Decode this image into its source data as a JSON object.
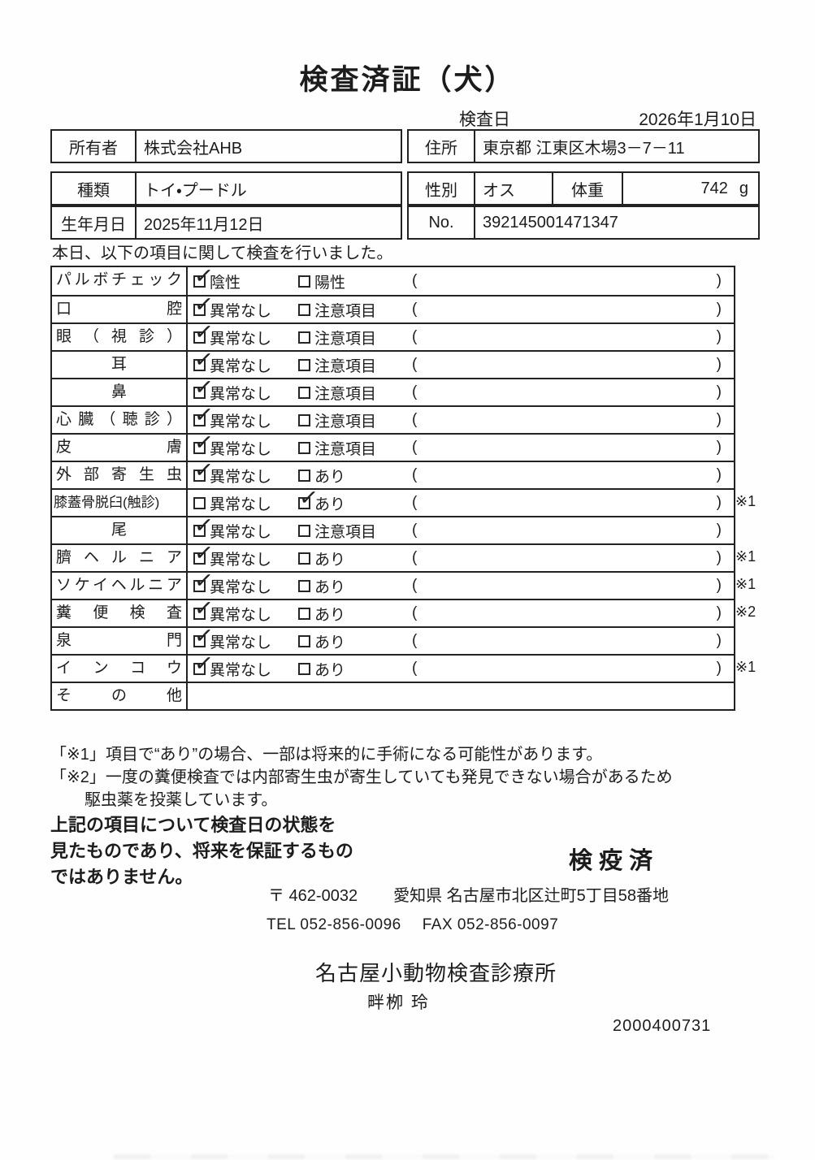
{
  "title": "検査済証（犬）",
  "exam_date": {
    "label": "検査日",
    "value": "2026年1月10日"
  },
  "owner": {
    "label": "所有者",
    "value": "株式会社AHB",
    "address_label": "住所",
    "address": "東京都 江東区木場3－7－11"
  },
  "pet": {
    "breed_label": "種類",
    "breed": "トイ・プードル",
    "sex_label": "性別",
    "sex": "オス",
    "weight_label": "体重",
    "weight": "742",
    "weight_unit": "g",
    "birthdate_label": "生年月日",
    "birthdate": "2025年11月12日",
    "no_label": "No.",
    "no": "392145001471347"
  },
  "intro": "本日、以下の項目に関して検査を行いました。",
  "paren_open": "(",
  "paren_close": ")",
  "exam_items": [
    {
      "label": "パルボチェック",
      "align": "justify",
      "options": [
        {
          "text": "陰性",
          "checked": true
        },
        {
          "text": "陽性",
          "checked": false
        }
      ],
      "paren_value": "",
      "note": ""
    },
    {
      "label": "口腔",
      "align": "justify",
      "options": [
        {
          "text": "異常なし",
          "checked": true
        },
        {
          "text": "注意項目",
          "checked": false
        }
      ],
      "paren_value": "",
      "note": ""
    },
    {
      "label": "眼（視診）",
      "align": "justify",
      "options": [
        {
          "text": "異常なし",
          "checked": true
        },
        {
          "text": "注意項目",
          "checked": false
        }
      ],
      "paren_value": "",
      "note": ""
    },
    {
      "label": "耳",
      "align": "center",
      "options": [
        {
          "text": "異常なし",
          "checked": true
        },
        {
          "text": "注意項目",
          "checked": false
        }
      ],
      "paren_value": "",
      "note": ""
    },
    {
      "label": "鼻",
      "align": "center",
      "options": [
        {
          "text": "異常なし",
          "checked": true
        },
        {
          "text": "注意項目",
          "checked": false
        }
      ],
      "paren_value": "",
      "note": ""
    },
    {
      "label": "心臓（聴診）",
      "align": "justify",
      "options": [
        {
          "text": "異常なし",
          "checked": true
        },
        {
          "text": "注意項目",
          "checked": false
        }
      ],
      "paren_value": "",
      "note": ""
    },
    {
      "label": "皮膚",
      "align": "justify",
      "options": [
        {
          "text": "異常なし",
          "checked": true
        },
        {
          "text": "注意項目",
          "checked": false
        }
      ],
      "paren_value": "",
      "note": ""
    },
    {
      "label": "外部寄生虫",
      "align": "justify",
      "options": [
        {
          "text": "異常なし",
          "checked": true
        },
        {
          "text": "あり",
          "checked": false
        }
      ],
      "paren_value": "",
      "note": ""
    },
    {
      "label": "膝蓋骨脱臼(触診)",
      "align": "tight",
      "options": [
        {
          "text": "異常なし",
          "checked": false
        },
        {
          "text": "あり",
          "checked": true
        }
      ],
      "paren_value": "",
      "note": "※1"
    },
    {
      "label": "尾",
      "align": "center",
      "options": [
        {
          "text": "異常なし",
          "checked": true
        },
        {
          "text": "注意項目",
          "checked": false
        }
      ],
      "paren_value": "",
      "note": ""
    },
    {
      "label": "臍ヘルニア",
      "align": "justify",
      "options": [
        {
          "text": "異常なし",
          "checked": true
        },
        {
          "text": "あり",
          "checked": false
        }
      ],
      "paren_value": "",
      "note": "※1"
    },
    {
      "label": "ソケイヘルニア",
      "align": "justify",
      "options": [
        {
          "text": "異常なし",
          "checked": true
        },
        {
          "text": "あり",
          "checked": false
        }
      ],
      "paren_value": "",
      "note": "※1"
    },
    {
      "label": "糞便検査",
      "align": "justify",
      "options": [
        {
          "text": "異常なし",
          "checked": true
        },
        {
          "text": "あり",
          "checked": false
        }
      ],
      "paren_value": "",
      "note": "※2"
    },
    {
      "label": "泉門",
      "align": "justify",
      "options": [
        {
          "text": "異常なし",
          "checked": true
        },
        {
          "text": "あり",
          "checked": false
        }
      ],
      "paren_value": "",
      "note": ""
    },
    {
      "label": "インコウ",
      "align": "justify",
      "options": [
        {
          "text": "異常なし",
          "checked": true
        },
        {
          "text": "あり",
          "checked": false
        }
      ],
      "paren_value": "",
      "note": "※1"
    },
    {
      "label": "その他",
      "align": "justify",
      "options": [],
      "paren_value": "",
      "note": ""
    }
  ],
  "footnotes": [
    {
      "text": "「※1」項目で“あり”の場合、一部は将来的に手術になる可能性があります。",
      "indent": false
    },
    {
      "text": "「※2」一度の糞便検査では内部寄生虫が寄生していても発見できない場合があるため",
      "indent": false
    },
    {
      "text": "駆虫薬を投薬しています。",
      "indent": true
    }
  ],
  "disclaimer_lines": [
    "上記の項目について検査日の状態を",
    "見たものであり、将来を保証するもの",
    "ではありません。"
  ],
  "stamp": "検 疫 済",
  "clinic": {
    "postal": "〒 462-0032",
    "address": "愛知県 名古屋市北区辻町5丁目58番地",
    "tel": "TEL 052-856-0096",
    "fax": "FAX 052-856-0097",
    "name": "名古屋小動物検査診療所",
    "veterinarian": "畔栁 玲"
  },
  "serial": "2000400731"
}
